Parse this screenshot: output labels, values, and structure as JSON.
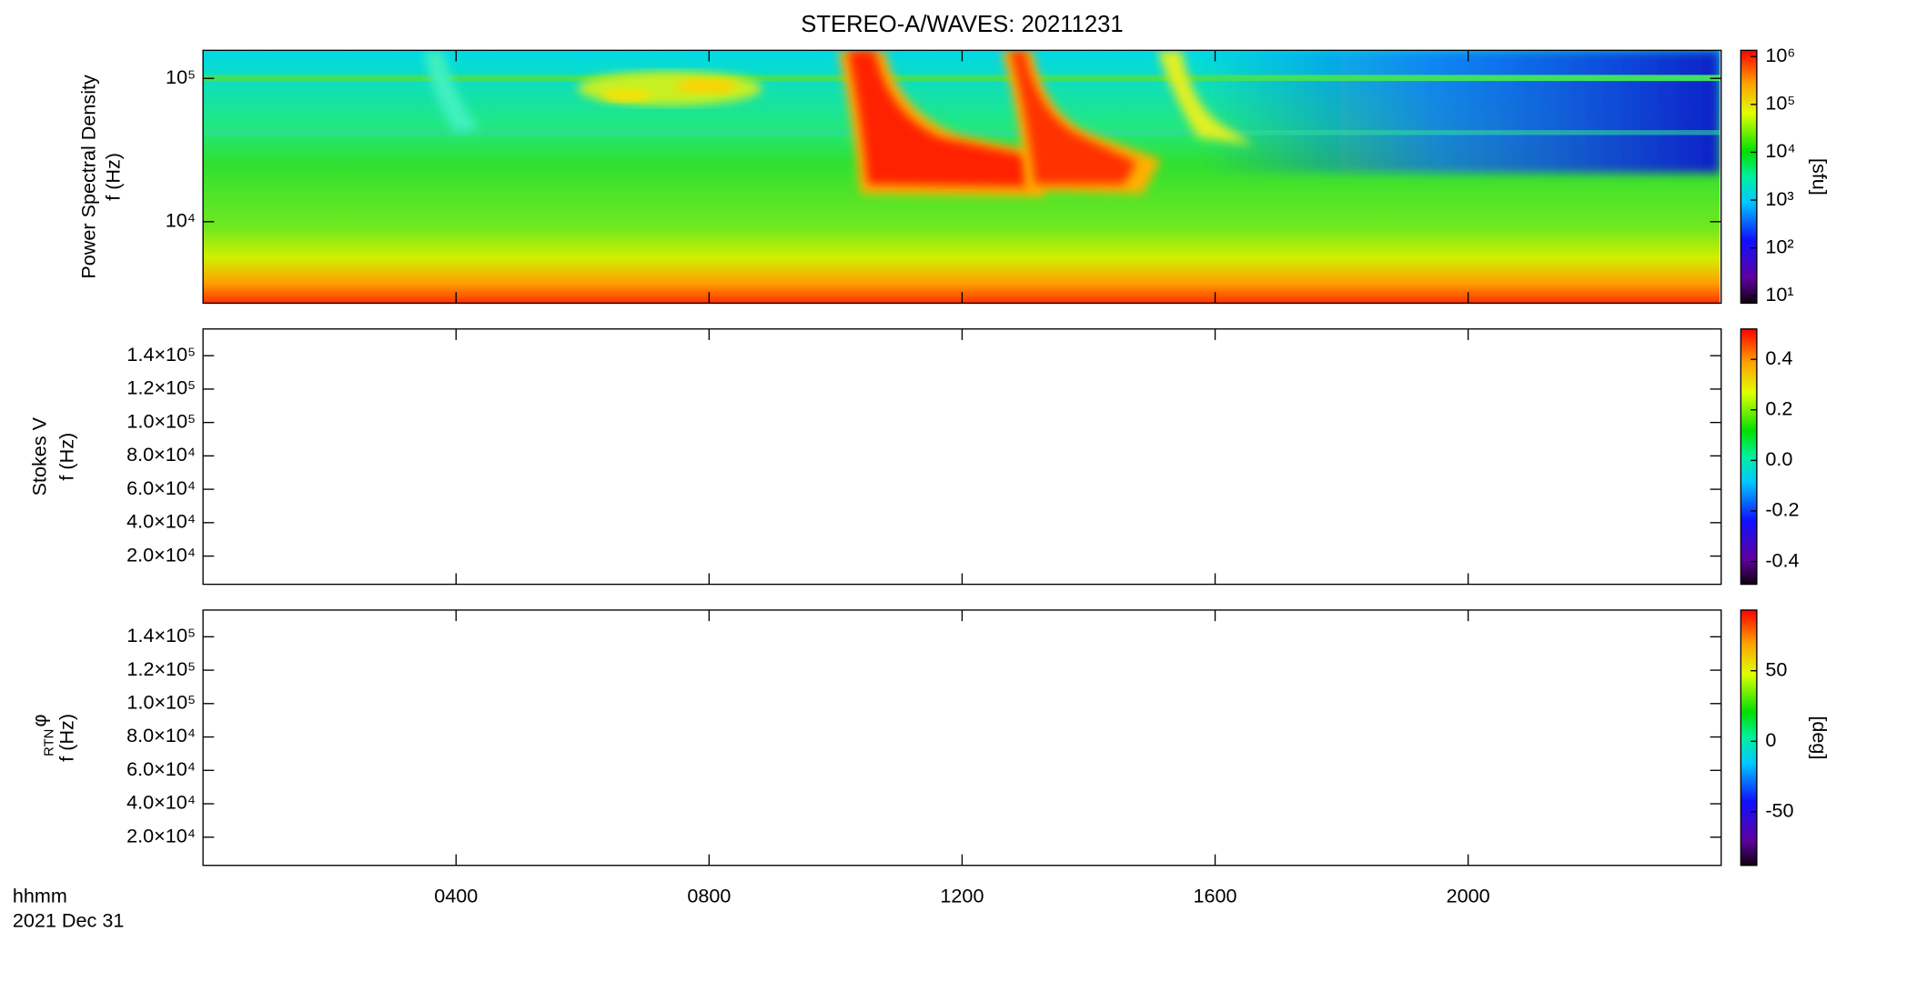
{
  "title": "STEREO-A/WAVES: 20211231",
  "x_axis": {
    "xlim": [
      0,
      24
    ],
    "xticks": [
      {
        "value": 4,
        "label": "0400"
      },
      {
        "value": 8,
        "label": "0800"
      },
      {
        "value": 12,
        "label": "1200"
      },
      {
        "value": 16,
        "label": "1600"
      },
      {
        "value": 20,
        "label": "2000"
      }
    ],
    "label": "hhmm",
    "date": "2021 Dec 31"
  },
  "chart_data": [
    {
      "type": "heatmap",
      "ylabel": [
        "Power Spectral Density",
        "f (Hz)"
      ],
      "yscale": "log",
      "ylim": [
        2700,
        157000
      ],
      "yticks": [
        {
          "value": 10000,
          "label": "10⁴"
        },
        {
          "value": 100000,
          "label": "10⁵"
        }
      ],
      "colorbar": {
        "scale": "log",
        "lim": [
          7,
          1350000
        ],
        "label": "[sfu]",
        "ticks": [
          {
            "value": 10,
            "label": "10¹"
          },
          {
            "value": 100,
            "label": "10²"
          },
          {
            "value": 1000,
            "label": "10³"
          },
          {
            "value": 10000,
            "label": "10⁴"
          },
          {
            "value": 100000,
            "label": "10⁵"
          },
          {
            "value": 1000000,
            "label": "10⁶"
          }
        ]
      }
    },
    {
      "type": "heatmap",
      "ylabel": [
        "Stokes V",
        "f (Hz)"
      ],
      "yscale": "linear",
      "ylim": [
        3100,
        156000
      ],
      "yticks": [
        {
          "value": 20000,
          "label": "2.0×10⁴"
        },
        {
          "value": 40000,
          "label": "4.0×10⁴"
        },
        {
          "value": 60000,
          "label": "6.0×10⁴"
        },
        {
          "value": 80000,
          "label": "8.0×10⁴"
        },
        {
          "value": 100000,
          "label": "1.0×10⁵"
        },
        {
          "value": 120000,
          "label": "1.2×10⁵"
        },
        {
          "value": 140000,
          "label": "1.4×10⁵"
        }
      ],
      "colorbar": {
        "scale": "linear",
        "lim": [
          -0.49,
          0.52
        ],
        "ticks": [
          -0.4,
          -0.2,
          {
            "value": 0,
            "label": "0.0"
          },
          0.2,
          0.4
        ]
      }
    },
    {
      "type": "heatmap",
      "ylabel_symbol": "φ",
      "ylabel_subscript": "RTN",
      "ylabel": [
        "f (Hz)"
      ],
      "yscale": "linear",
      "ylim": [
        3100,
        156000
      ],
      "yticks": [
        {
          "value": 20000,
          "label": "2.0×10⁴"
        },
        {
          "value": 40000,
          "label": "4.0×10⁴"
        },
        {
          "value": 60000,
          "label": "6.0×10⁴"
        },
        {
          "value": 80000,
          "label": "8.0×10⁴"
        },
        {
          "value": 100000,
          "label": "1.0×10⁵"
        },
        {
          "value": 120000,
          "label": "1.2×10⁵"
        },
        {
          "value": 140000,
          "label": "1.4×10⁵"
        }
      ],
      "colorbar": {
        "scale": "linear",
        "lim": [
          -88,
          93
        ],
        "label": "[deg]",
        "ticks": [
          -50,
          0,
          50
        ]
      }
    }
  ]
}
